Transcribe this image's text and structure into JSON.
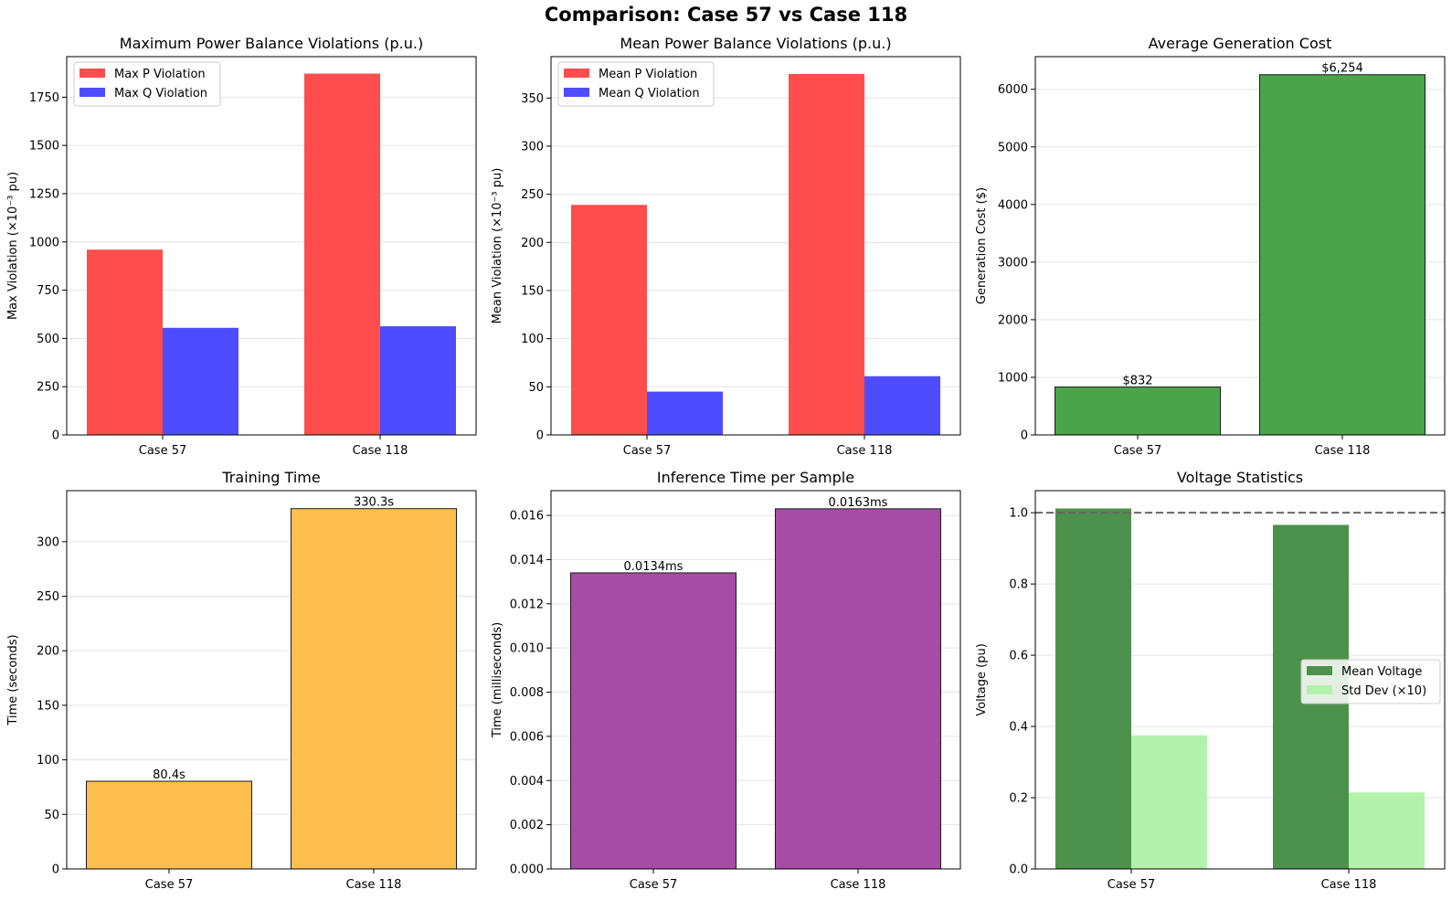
{
  "figure": {
    "title": "Comparison: Case 57 vs Case 118"
  },
  "chart_data": [
    {
      "type": "bar",
      "title": "Maximum Power Balance Violations (p.u.)",
      "xlabel": "",
      "ylabel": "Max Violation (×10⁻³ pu)",
      "categories": [
        "Case 57",
        "Case 118"
      ],
      "series": [
        {
          "name": "Max P Violation",
          "values": [
            960,
            1872
          ],
          "color": "#ff4d4d"
        },
        {
          "name": "Max Q Violation",
          "values": [
            555,
            563
          ],
          "color": "#4d4dff"
        }
      ],
      "ylim": [
        0,
        1960
      ],
      "yticks": [
        0,
        250,
        500,
        750,
        1000,
        1250,
        1500,
        1750
      ],
      "ytick_labels": [
        "0",
        "250",
        "500",
        "750",
        "1000",
        "1250",
        "1500",
        "1750"
      ],
      "grid": "y",
      "legend": "top-left"
    },
    {
      "type": "bar",
      "title": "Mean Power Balance Violations (p.u.)",
      "xlabel": "",
      "ylabel": "Mean Violation (×10⁻³ pu)",
      "categories": [
        "Case 57",
        "Case 118"
      ],
      "series": [
        {
          "name": "Mean P Violation",
          "values": [
            239,
            375
          ],
          "color": "#ff4d4d"
        },
        {
          "name": "Mean Q Violation",
          "values": [
            45,
            61
          ],
          "color": "#4d4dff"
        }
      ],
      "ylim": [
        0,
        393
      ],
      "yticks": [
        0,
        50,
        100,
        150,
        200,
        250,
        300,
        350
      ],
      "ytick_labels": [
        "0",
        "50",
        "100",
        "150",
        "200",
        "250",
        "300",
        "350"
      ],
      "grid": "y",
      "legend": "top-left"
    },
    {
      "type": "bar",
      "title": "Average Generation Cost",
      "xlabel": "",
      "ylabel": "Generation Cost ($)",
      "categories": [
        "Case 57",
        "Case 118"
      ],
      "series": [
        {
          "values": [
            832,
            6254
          ],
          "color": "#4aa54a",
          "data_labels": [
            "$832",
            "$6,254"
          ]
        }
      ],
      "ylim": [
        0,
        6567
      ],
      "yticks": [
        0,
        1000,
        2000,
        3000,
        4000,
        5000,
        6000
      ],
      "ytick_labels": [
        "0",
        "1000",
        "2000",
        "3000",
        "4000",
        "5000",
        "6000"
      ],
      "grid": "y"
    },
    {
      "type": "bar",
      "title": "Training Time",
      "xlabel": "",
      "ylabel": "Time (seconds)",
      "categories": [
        "Case 57",
        "Case 118"
      ],
      "series": [
        {
          "values": [
            80.4,
            330.3
          ],
          "color": "#ffbf4d",
          "data_labels": [
            "80.4s",
            "330.3s"
          ]
        }
      ],
      "ylim": [
        0,
        346.8
      ],
      "yticks": [
        0,
        50,
        100,
        150,
        200,
        250,
        300
      ],
      "ytick_labels": [
        "0",
        "50",
        "100",
        "150",
        "200",
        "250",
        "300"
      ],
      "grid": "y"
    },
    {
      "type": "bar",
      "title": "Inference Time per Sample",
      "xlabel": "",
      "ylabel": "Time (milliseconds)",
      "categories": [
        "Case 57",
        "Case 118"
      ],
      "series": [
        {
          "values": [
            0.0134,
            0.0163
          ],
          "color": "#a64ca6",
          "data_labels": [
            "0.0134ms",
            "0.0163ms"
          ]
        }
      ],
      "ylim": [
        0,
        0.01712
      ],
      "yticks": [
        0,
        0.002,
        0.004,
        0.006,
        0.008,
        0.01,
        0.012,
        0.014,
        0.016
      ],
      "ytick_labels": [
        "0.000",
        "0.002",
        "0.004",
        "0.006",
        "0.008",
        "0.010",
        "0.012",
        "0.014",
        "0.016"
      ],
      "grid": "y"
    },
    {
      "type": "bar",
      "title": "Voltage Statistics",
      "xlabel": "",
      "ylabel": "Voltage (pu)",
      "categories": [
        "Case 57",
        "Case 118"
      ],
      "series": [
        {
          "name": "Mean Voltage",
          "values": [
            1.012,
            0.966
          ],
          "color": "#4c914c"
        },
        {
          "name": "Std Dev (×10)",
          "values": [
            0.375,
            0.215
          ],
          "color": "#b2f2ac"
        }
      ],
      "reference_line": {
        "y": 1.0,
        "style": "dashed",
        "color": "#666666"
      },
      "ylim": [
        0,
        1.062
      ],
      "yticks": [
        0,
        0.2,
        0.4,
        0.6,
        0.8,
        1.0
      ],
      "ytick_labels": [
        "0.0",
        "0.2",
        "0.4",
        "0.6",
        "0.8",
        "1.0"
      ],
      "grid": "y",
      "legend": "center-right"
    }
  ]
}
